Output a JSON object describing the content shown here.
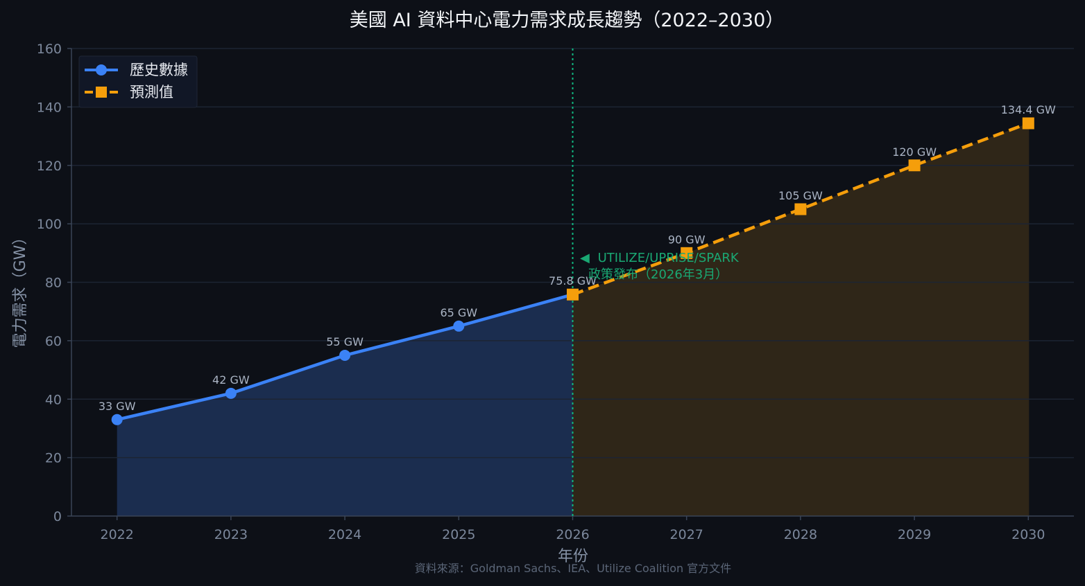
{
  "chart_data": {
    "type": "line",
    "title": "美國 AI 資料中心電力需求成長趨勢（2022–2030）",
    "xlabel": "年份",
    "ylabel": "電力需求（GW）",
    "x": [
      2022,
      2023,
      2024,
      2025,
      2026,
      2027,
      2028,
      2029,
      2030
    ],
    "xlim": [
      2021.6,
      2030.4
    ],
    "ylim": [
      0,
      160
    ],
    "yticks": [
      0,
      20,
      40,
      60,
      80,
      100,
      120,
      140,
      160
    ],
    "grid": true,
    "legend_position": "top-left",
    "series": [
      {
        "key": "historical",
        "name": "歷史數據",
        "color": "#3b82f6",
        "fill_color": "#1b2d4f",
        "marker": "circle",
        "line_style": "solid",
        "x": [
          2022,
          2023,
          2024,
          2025,
          2026
        ],
        "values": [
          33,
          42,
          55,
          65,
          75.8
        ],
        "labels": [
          "33 GW",
          "42 GW",
          "55 GW",
          "65 GW",
          "75.8 GW"
        ]
      },
      {
        "key": "forecast",
        "name": "預測值",
        "color": "#f59e0b",
        "fill_color": "#2f2618",
        "marker": "square",
        "line_style": "dashed",
        "x": [
          2026,
          2027,
          2028,
          2029,
          2030
        ],
        "values": [
          75.8,
          90,
          105,
          120,
          134.4
        ],
        "labels": [
          "",
          "90 GW",
          "105 GW",
          "120 GW",
          "134.4 GW"
        ]
      }
    ],
    "annotation": {
      "x": 2026,
      "color": "#10b981",
      "arrow": "◀",
      "line1": "UTILIZE/UPRISE/SPARK",
      "line2": "政策發布（2026年3月）"
    },
    "source": "資料來源：Goldman Sachs、IEA、Utilize Coalition 官方文件"
  }
}
